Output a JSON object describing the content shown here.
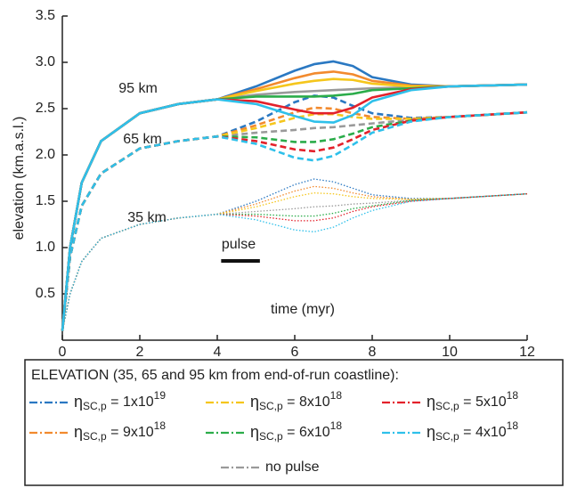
{
  "chart_data": {
    "type": "line",
    "y_label": "elevation (km.a.s.l.)",
    "x_label": "time (myr)",
    "xlim": [
      0,
      12
    ],
    "ylim": [
      0,
      3.5
    ],
    "xticks": [
      0,
      2,
      4,
      6,
      8,
      10,
      12
    ],
    "yticks": [
      0.5,
      {
        "value": 1.0,
        "label": "1.0"
      },
      1.5,
      {
        "value": 2.0,
        "label": "2.0"
      },
      2.5,
      {
        "value": 3.0,
        "label": "3.0"
      },
      3.5
    ],
    "x": [
      0,
      0.2,
      0.5,
      1,
      2,
      3,
      4,
      5,
      6,
      6.5,
      7,
      7.5,
      8,
      9,
      10,
      12
    ],
    "curve_labels": [
      "35 km",
      "65 km",
      "95 km"
    ],
    "line_styles": [
      "dotted",
      "dashed",
      "solid"
    ],
    "pulse": {
      "label": "pulse",
      "range": [
        4.1,
        5.1
      ]
    },
    "legend_title": "ELEVATION (35, 65 and 95 km from end-of-run coastline):",
    "series": [
      {
        "name": "no pulse",
        "color": "#9a9a9a",
        "values": [
          [
            0.1,
            0.5,
            0.85,
            1.1,
            1.25,
            1.32,
            1.36,
            1.39,
            1.42,
            1.44,
            1.45,
            1.47,
            1.48,
            1.51,
            1.53,
            1.58
          ],
          [
            0.1,
            0.9,
            1.45,
            1.8,
            2.07,
            2.15,
            2.2,
            2.24,
            2.27,
            2.29,
            2.3,
            2.32,
            2.34,
            2.38,
            2.41,
            2.46
          ],
          [
            0.1,
            1.0,
            1.7,
            2.15,
            2.45,
            2.55,
            2.6,
            2.65,
            2.68,
            2.69,
            2.7,
            2.71,
            2.72,
            2.73,
            2.74,
            2.76
          ]
        ]
      },
      {
        "name": {
          "symbol": "η",
          "subscript": "SC,p",
          "text": " = 1x10",
          "superscript": "19"
        },
        "color": "#2a78c2",
        "values": [
          [
            0.1,
            0.5,
            0.85,
            1.1,
            1.25,
            1.32,
            1.36,
            1.5,
            1.68,
            1.74,
            1.71,
            1.64,
            1.57,
            1.53,
            1.53,
            1.58
          ],
          [
            0.1,
            0.9,
            1.45,
            1.8,
            2.07,
            2.15,
            2.2,
            2.36,
            2.57,
            2.64,
            2.62,
            2.53,
            2.45,
            2.4,
            2.41,
            2.46
          ],
          [
            0.1,
            1.0,
            1.7,
            2.15,
            2.45,
            2.55,
            2.6,
            2.74,
            2.91,
            2.98,
            3.01,
            2.96,
            2.84,
            2.76,
            2.74,
            2.76
          ]
        ]
      },
      {
        "name": {
          "symbol": "η",
          "subscript": "SC,p",
          "text": " = 9x10",
          "superscript": "18"
        },
        "color": "#f28a2e",
        "values": [
          [
            0.1,
            0.5,
            0.85,
            1.1,
            1.25,
            1.32,
            1.36,
            1.47,
            1.61,
            1.66,
            1.64,
            1.59,
            1.55,
            1.52,
            1.53,
            1.58
          ],
          [
            0.1,
            0.9,
            1.45,
            1.8,
            2.07,
            2.15,
            2.2,
            2.32,
            2.46,
            2.51,
            2.5,
            2.45,
            2.41,
            2.39,
            2.41,
            2.46
          ],
          [
            0.1,
            1.0,
            1.7,
            2.15,
            2.45,
            2.55,
            2.6,
            2.71,
            2.83,
            2.88,
            2.9,
            2.87,
            2.8,
            2.75,
            2.74,
            2.76
          ]
        ]
      },
      {
        "name": {
          "symbol": "η",
          "subscript": "SC,p",
          "text": " = 8x10",
          "superscript": "18"
        },
        "color": "#f5c61c",
        "values": [
          [
            0.1,
            0.5,
            0.85,
            1.1,
            1.25,
            1.32,
            1.36,
            1.44,
            1.55,
            1.59,
            1.58,
            1.55,
            1.53,
            1.52,
            1.53,
            1.58
          ],
          [
            0.1,
            0.9,
            1.45,
            1.8,
            2.07,
            2.15,
            2.2,
            2.29,
            2.4,
            2.44,
            2.44,
            2.41,
            2.39,
            2.39,
            2.41,
            2.46
          ],
          [
            0.1,
            1.0,
            1.7,
            2.15,
            2.45,
            2.55,
            2.6,
            2.69,
            2.77,
            2.8,
            2.82,
            2.81,
            2.77,
            2.74,
            2.74,
            2.76
          ]
        ]
      },
      {
        "name": {
          "symbol": "η",
          "subscript": "SC,p",
          "text": " = 6x10",
          "superscript": "18"
        },
        "color": "#2bac4a",
        "values": [
          [
            0.1,
            0.5,
            0.85,
            1.1,
            1.25,
            1.32,
            1.36,
            1.36,
            1.34,
            1.34,
            1.37,
            1.42,
            1.45,
            1.51,
            1.53,
            1.58
          ],
          [
            0.1,
            0.9,
            1.45,
            1.8,
            2.07,
            2.15,
            2.2,
            2.19,
            2.14,
            2.14,
            2.17,
            2.23,
            2.3,
            2.37,
            2.41,
            2.46
          ],
          [
            0.1,
            1.0,
            1.7,
            2.15,
            2.45,
            2.55,
            2.6,
            2.63,
            2.63,
            2.63,
            2.64,
            2.66,
            2.7,
            2.72,
            2.74,
            2.76
          ]
        ]
      },
      {
        "name": {
          "symbol": "η",
          "subscript": "SC,p",
          "text": " = 5x10",
          "superscript": "18"
        },
        "color": "#e3212b",
        "values": [
          [
            0.1,
            0.5,
            0.85,
            1.1,
            1.25,
            1.32,
            1.36,
            1.34,
            1.29,
            1.29,
            1.32,
            1.39,
            1.44,
            1.5,
            1.53,
            1.58
          ],
          [
            0.1,
            0.9,
            1.45,
            1.8,
            2.07,
            2.15,
            2.2,
            2.15,
            2.06,
            2.04,
            2.08,
            2.17,
            2.27,
            2.37,
            2.41,
            2.46
          ],
          [
            0.1,
            1.0,
            1.7,
            2.15,
            2.45,
            2.55,
            2.6,
            2.58,
            2.49,
            2.45,
            2.45,
            2.51,
            2.62,
            2.71,
            2.74,
            2.76
          ]
        ]
      },
      {
        "name": {
          "symbol": "η",
          "subscript": "SC,p",
          "text": " = 4x10",
          "superscript": "18"
        },
        "color": "#2ec0ea",
        "values": [
          [
            0.1,
            0.5,
            0.85,
            1.1,
            1.25,
            1.32,
            1.36,
            1.3,
            1.19,
            1.17,
            1.22,
            1.32,
            1.4,
            1.5,
            1.53,
            1.58
          ],
          [
            0.1,
            0.9,
            1.45,
            1.8,
            2.07,
            2.15,
            2.2,
            2.12,
            1.97,
            1.94,
            1.99,
            2.11,
            2.24,
            2.36,
            2.41,
            2.46
          ],
          [
            0.1,
            1.0,
            1.7,
            2.15,
            2.45,
            2.55,
            2.6,
            2.55,
            2.42,
            2.36,
            2.35,
            2.43,
            2.58,
            2.7,
            2.74,
            2.76
          ]
        ]
      }
    ]
  }
}
